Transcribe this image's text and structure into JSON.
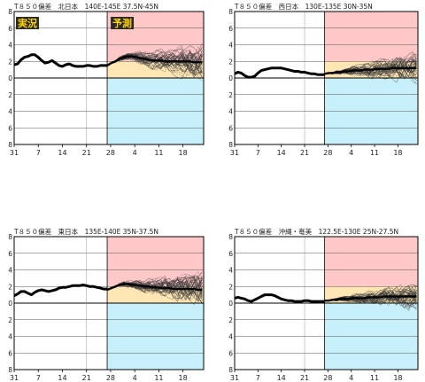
{
  "labels": {
    "observed": "実況",
    "forecast": "予測"
  },
  "colors": {
    "forecast_warm": "#ffc8c8",
    "forecast_mid": "#ffe6b4",
    "forecast_cool": "#c8f0fa",
    "analysis_line": "#000000",
    "ensemble_line": "#333333",
    "label_bg": "#2a2a2a",
    "label_text": "#ffd400"
  },
  "chart_data": [
    {
      "type": "line",
      "title": "T８５０偏差　北日本　140E-145E  37.5N-45N",
      "xticks": [
        "31",
        "7",
        "14",
        "21",
        "28",
        "4",
        "11",
        "18"
      ],
      "yticks": [
        "8",
        "6",
        "4",
        "2",
        "0",
        "2",
        "4",
        "6",
        "8"
      ],
      "ylim": [
        -8,
        8
      ],
      "grid": true,
      "show_labels": true,
      "forecast_start_day": 27,
      "observed": [
        1.6,
        1.7,
        2.2,
        2.5,
        2.6,
        2.8,
        2.8,
        2.5,
        2.1,
        1.8,
        1.9,
        2.1,
        1.8,
        1.5,
        1.4,
        1.6,
        1.7,
        1.5,
        1.4,
        1.4,
        1.4,
        1.5,
        1.5,
        1.4,
        1.4,
        1.5,
        1.5,
        1.5
      ],
      "ensemble_mean": [
        1.5,
        1.8,
        2.0,
        2.3,
        2.5,
        2.6,
        2.6,
        2.5,
        2.4,
        2.3,
        2.2,
        2.1,
        2.1,
        2.1,
        2.0,
        2.0,
        2.0,
        2.0,
        2.0,
        2.0,
        2.0,
        1.9,
        1.9,
        1.9
      ],
      "spread_end": 2.1
    },
    {
      "type": "line",
      "title": "T８５０偏差　西日本　130E-135E  30N-35N",
      "xticks": [
        "31",
        "7",
        "14",
        "21",
        "28",
        "4",
        "11",
        "18"
      ],
      "yticks": [
        "8",
        "6",
        "4",
        "2",
        "0",
        "2",
        "4",
        "6",
        "8"
      ],
      "ylim": [
        -8,
        8
      ],
      "grid": true,
      "show_labels": false,
      "forecast_start_day": 27,
      "observed": [
        0.5,
        0.7,
        0.6,
        0.3,
        0.1,
        0.1,
        0.2,
        0.6,
        0.9,
        1.0,
        1.1,
        1.2,
        1.2,
        1.2,
        1.2,
        1.1,
        1.0,
        0.9,
        0.8,
        0.8,
        0.7,
        0.7,
        0.6,
        0.5,
        0.5,
        0.4,
        0.4,
        0.4
      ],
      "ensemble_mean": [
        0.5,
        0.6,
        0.6,
        0.7,
        0.7,
        0.8,
        0.8,
        0.9,
        0.9,
        0.9,
        1.0,
        1.0,
        1.0,
        1.1,
        1.1,
        1.1,
        1.1,
        1.2,
        1.2,
        1.2,
        1.2,
        1.2,
        1.2,
        1.2
      ],
      "spread_end": 1.8
    },
    {
      "type": "line",
      "title": "T８５０偏差　東日本　135E-140E  35N-37.5N",
      "xticks": [
        "31",
        "7",
        "14",
        "21",
        "28",
        "4",
        "11",
        "18"
      ],
      "yticks": [
        "8",
        "6",
        "4",
        "2",
        "0",
        "2",
        "4",
        "6",
        "8"
      ],
      "ylim": [
        -8,
        8
      ],
      "grid": true,
      "show_labels": false,
      "forecast_start_day": 27,
      "observed": [
        0.9,
        1.1,
        1.4,
        1.4,
        1.2,
        1.0,
        1.3,
        1.5,
        1.6,
        1.5,
        1.4,
        1.5,
        1.6,
        1.8,
        1.9,
        1.9,
        2.0,
        2.1,
        2.1,
        2.1,
        2.2,
        2.1,
        2.0,
        2.0,
        1.9,
        1.8,
        1.7,
        1.7
      ],
      "ensemble_mean": [
        1.6,
        1.8,
        2.0,
        2.2,
        2.3,
        2.3,
        2.2,
        2.2,
        2.1,
        2.0,
        2.0,
        1.9,
        1.9,
        1.8,
        1.8,
        1.8,
        1.7,
        1.7,
        1.7,
        1.7,
        1.7,
        1.7,
        1.6,
        1.6
      ],
      "spread_end": 2.0
    },
    {
      "type": "line",
      "title": "T８５０偏差　沖縄・奄美　122.5E-130E  25N-27.5N",
      "xticks": [
        "31",
        "7",
        "14",
        "21",
        "28",
        "4",
        "11",
        "18"
      ],
      "yticks": [
        "8",
        "6",
        "4",
        "2",
        "0",
        "2",
        "4",
        "6",
        "8"
      ],
      "ylim": [
        -8,
        8
      ],
      "grid": true,
      "show_labels": false,
      "forecast_start_day": 27,
      "observed": [
        0.6,
        0.7,
        0.6,
        0.5,
        0.3,
        0.2,
        0.4,
        0.6,
        0.8,
        1.0,
        1.0,
        1.0,
        0.9,
        0.7,
        0.5,
        0.4,
        0.3,
        0.3,
        0.2,
        0.2,
        0.2,
        0.3,
        0.3,
        0.2,
        0.2,
        0.2,
        0.2,
        0.2
      ],
      "ensemble_mean": [
        0.3,
        0.3,
        0.4,
        0.4,
        0.5,
        0.5,
        0.5,
        0.6,
        0.6,
        0.6,
        0.6,
        0.7,
        0.7,
        0.7,
        0.7,
        0.8,
        0.8,
        0.8,
        0.8,
        0.8,
        0.8,
        0.8,
        0.8,
        0.8
      ],
      "spread_end": 1.6
    }
  ]
}
